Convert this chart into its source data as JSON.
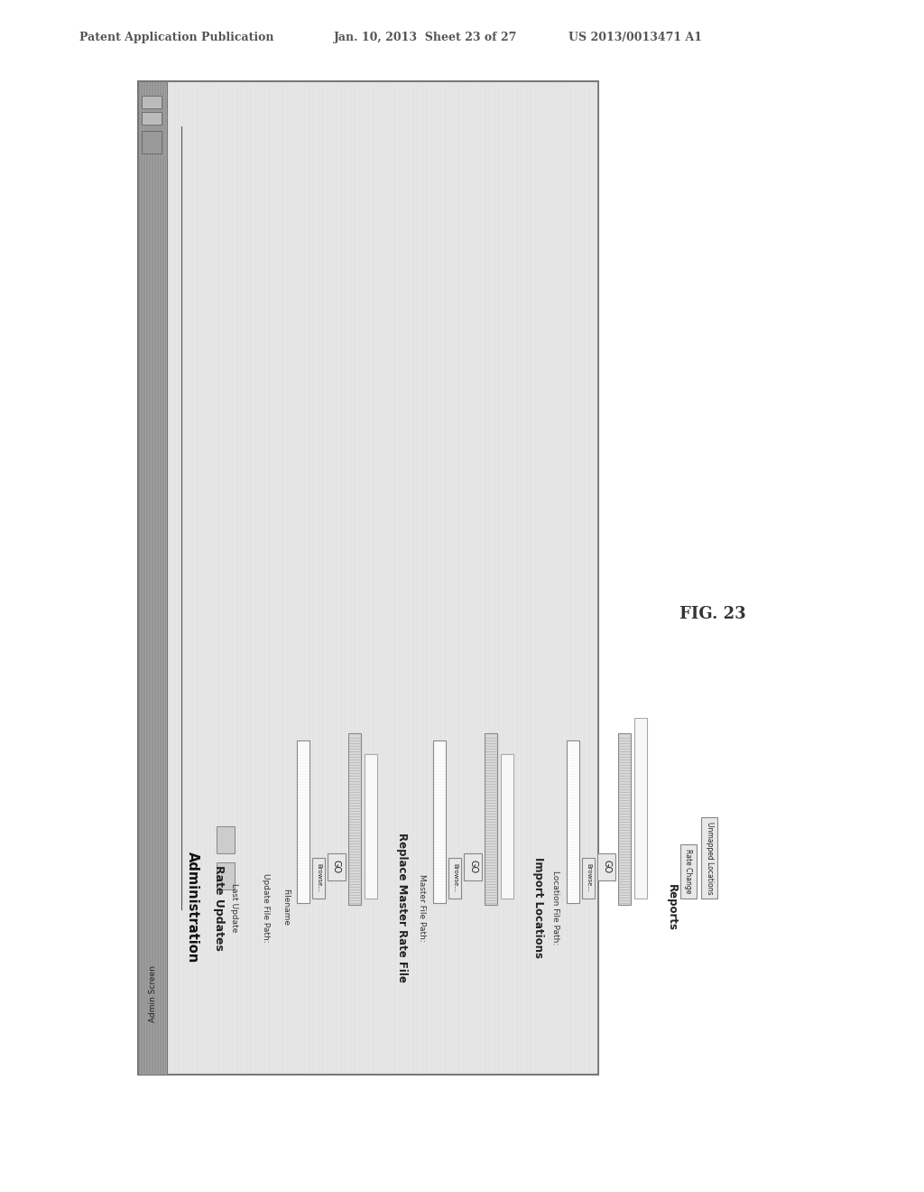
{
  "header_left": "Patent Application Publication",
  "header_mid": "Jan. 10, 2013  Sheet 23 of 27",
  "header_right": "US 2013/0013471 A1",
  "fig_label": "FIG. 23",
  "bg_color": "#ffffff",
  "header_color": "#555555",
  "screen_title": "Admin Screen",
  "section_admin": "Administration",
  "section_rate_updates": "Rate Updates",
  "label_last_update": "Last Update",
  "label_update_file_path": "Update File Path:",
  "label_filename": "Filename",
  "btn_browse1": "Browse...",
  "btn_go1": "GO",
  "section_replace": "Replace Master Rate File",
  "label_master_file_path": "Master File Path:",
  "btn_browse2": "Browse...",
  "btn_go2": "GO",
  "section_import": "Import Locations",
  "label_location_file_path": "Location File Path:",
  "btn_browse3": "Browse...",
  "btn_go3": "GO",
  "section_reports": "Reports",
  "btn_rate_change": "Rate Change",
  "btn_unmapped": "Unmapped Locations",
  "dark_color": "#333333",
  "screen_border": "#888888",
  "screen_bg": "#e8e8e8",
  "sidebar_bg": "#999999",
  "toolbar_bg": "#b0b0b0",
  "field_bg": "#ffffff",
  "btn_bg": "#e8e8e8",
  "progress_bg": "#e0e0e0"
}
